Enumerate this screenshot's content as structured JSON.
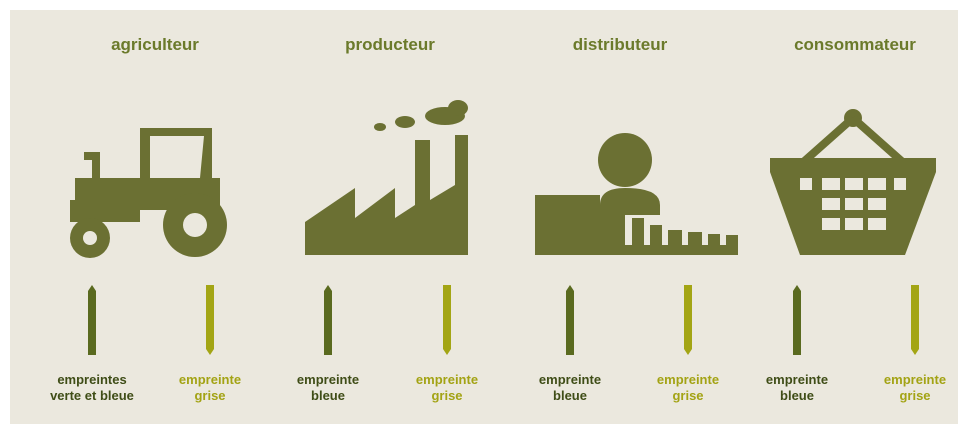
{
  "columns": [
    {
      "title": "agriculteur",
      "left": [
        "empreintes",
        "verte et bleue"
      ],
      "right": [
        "empreinte",
        "grise"
      ]
    },
    {
      "title": "producteur",
      "left": [
        "empreinte",
        "bleue"
      ],
      "right": [
        "empreinte",
        "grise"
      ]
    },
    {
      "title": "distributeur",
      "left": [
        "empreinte",
        "bleue"
      ],
      "right": [
        "empreinte",
        "grise"
      ]
    },
    {
      "title": "consommateur",
      "left": [
        "empreinte",
        "bleue"
      ],
      "right": [
        "empreinte",
        "grise"
      ]
    }
  ]
}
